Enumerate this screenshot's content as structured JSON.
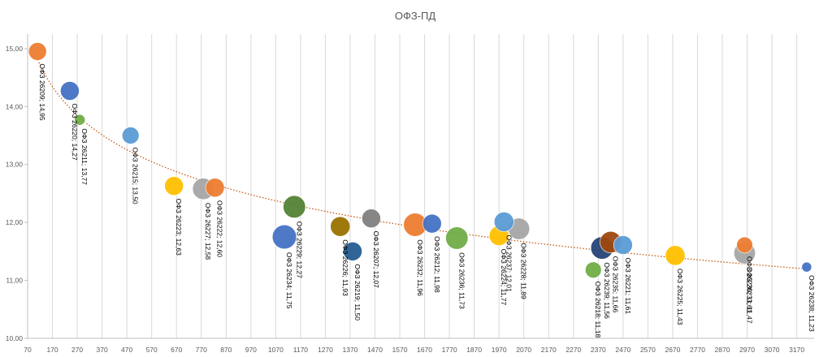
{
  "chart_data": {
    "type": "scatter",
    "title": "ОФЗ-ПД",
    "xlim": [
      70,
      3240
    ],
    "ylim": [
      10,
      15.25
    ],
    "x_ticks": [
      70,
      170,
      270,
      370,
      470,
      570,
      670,
      770,
      870,
      970,
      1070,
      1170,
      1270,
      1370,
      1470,
      1570,
      1670,
      1770,
      1870,
      1970,
      2070,
      2170,
      2270,
      2370,
      2470,
      2570,
      2670,
      2770,
      2870,
      2970,
      3070,
      3170
    ],
    "x_tick_labels": [
      "70",
      "170",
      "270",
      "370",
      "470",
      "570",
      "670",
      "770",
      "870",
      "970",
      "1070",
      "1170",
      "1270",
      "1370",
      "1470",
      "1570",
      "1670",
      "1770",
      "1870",
      "1970",
      "2070",
      "2170",
      "2270",
      "2370",
      "2470",
      "2570",
      "2670",
      "2770",
      "2870",
      "2970",
      "3070",
      "3170"
    ],
    "y_ticks": [
      10,
      11,
      12,
      13,
      14,
      15
    ],
    "y_tick_labels": [
      "10,00",
      "11,00",
      "12,00",
      "13,00",
      "14,00",
      "15,00"
    ],
    "grid": "vertical",
    "trendline": "dotted",
    "points": [
      {
        "label": "ОФЗ 26209; 14,95",
        "x": 110,
        "y": 14.95,
        "size": 1.0,
        "color": "#ed7d31"
      },
      {
        "label": "ОФЗ 26220; 14,27",
        "x": 240,
        "y": 14.27,
        "size": 1.05,
        "color": "#4472c4"
      },
      {
        "label": "ОФЗ 26211; 13,77",
        "x": 280,
        "y": 13.77,
        "size": 0.6,
        "color": "#70ad47"
      },
      {
        "label": "ОФЗ 26215; 13,50",
        "x": 485,
        "y": 13.5,
        "size": 0.95,
        "color": "#5b9bd5"
      },
      {
        "label": "ОФЗ 26223; 12,63",
        "x": 660,
        "y": 12.63,
        "size": 1.05,
        "color": "#ffc000"
      },
      {
        "label": "ОФЗ 26227; 12,58",
        "x": 778,
        "y": 12.58,
        "size": 1.2,
        "color": "#a5a5a5"
      },
      {
        "label": "ОФЗ 26222; 12,60",
        "x": 825,
        "y": 12.6,
        "size": 1.05,
        "color": "#ed7d31"
      },
      {
        "label": "ОФЗ 26234; 11,75",
        "x": 1105,
        "y": 11.75,
        "size": 1.35,
        "color": "#4472c4"
      },
      {
        "label": "ОФЗ 26229; 12,27",
        "x": 1145,
        "y": 12.27,
        "size": 1.25,
        "color": "#548235"
      },
      {
        "label": "ОФЗ 26226; 11,93",
        "x": 1330,
        "y": 11.93,
        "size": 1.1,
        "color": "#997300"
      },
      {
        "label": "ОФЗ 26219; 11,50",
        "x": 1380,
        "y": 11.5,
        "size": 1.05,
        "color": "#255e91"
      },
      {
        "label": "ОФЗ 26207; 12,07",
        "x": 1455,
        "y": 12.07,
        "size": 1.05,
        "color": "#7f7f7f"
      },
      {
        "label": "ОФЗ 26232; 11,96",
        "x": 1632,
        "y": 11.96,
        "size": 1.3,
        "color": "#ed7d31"
      },
      {
        "label": "ОФЗ 26212; 11,98",
        "x": 1700,
        "y": 11.98,
        "size": 1.05,
        "color": "#4472c4"
      },
      {
        "label": "ОФЗ 26236; 11,73",
        "x": 1800,
        "y": 11.73,
        "size": 1.25,
        "color": "#70ad47"
      },
      {
        "label": "ОФЗ 26224; 11,77",
        "x": 1970,
        "y": 11.77,
        "size": 1.1,
        "color": "#ffc000"
      },
      {
        "label": "ОФЗ 26237; 12,01",
        "x": 1990,
        "y": 12.01,
        "size": 1.1,
        "color": "#5b9bd5"
      },
      {
        "label": "ОФЗ 26228; 11,89",
        "x": 2050,
        "y": 11.89,
        "size": 1.2,
        "color": "#a5a5a5"
      },
      {
        "label": "ОФЗ 26218; 11,18",
        "x": 2350,
        "y": 11.18,
        "size": 0.9,
        "color": "#70ad47"
      },
      {
        "label": "ОФЗ 26239; 11,56",
        "x": 2385,
        "y": 11.56,
        "size": 1.25,
        "color": "#264478"
      },
      {
        "label": "ОФЗ 26235; 11,66",
        "x": 2420,
        "y": 11.66,
        "size": 1.2,
        "color": "#9e480e"
      },
      {
        "label": "ОФЗ 26221; 11,61",
        "x": 2470,
        "y": 11.61,
        "size": 1.05,
        "color": "#5b9bd5"
      },
      {
        "label": "ОФЗ 26225; 11,43",
        "x": 2680,
        "y": 11.43,
        "size": 1.1,
        "color": "#ffc000"
      },
      {
        "label": "ОФЗ 26233; 11,47",
        "x": 2960,
        "y": 11.47,
        "size": 1.2,
        "color": "#a5a5a5"
      },
      {
        "label": "ОФЗ 26230; 11,61",
        "x": 2960,
        "y": 11.61,
        "size": 0.9,
        "color": "#ed7d31"
      },
      {
        "label": "ОФЗ 26238; 11,23",
        "x": 3210,
        "y": 11.23,
        "size": 0.55,
        "color": "#4472c4"
      }
    ]
  }
}
